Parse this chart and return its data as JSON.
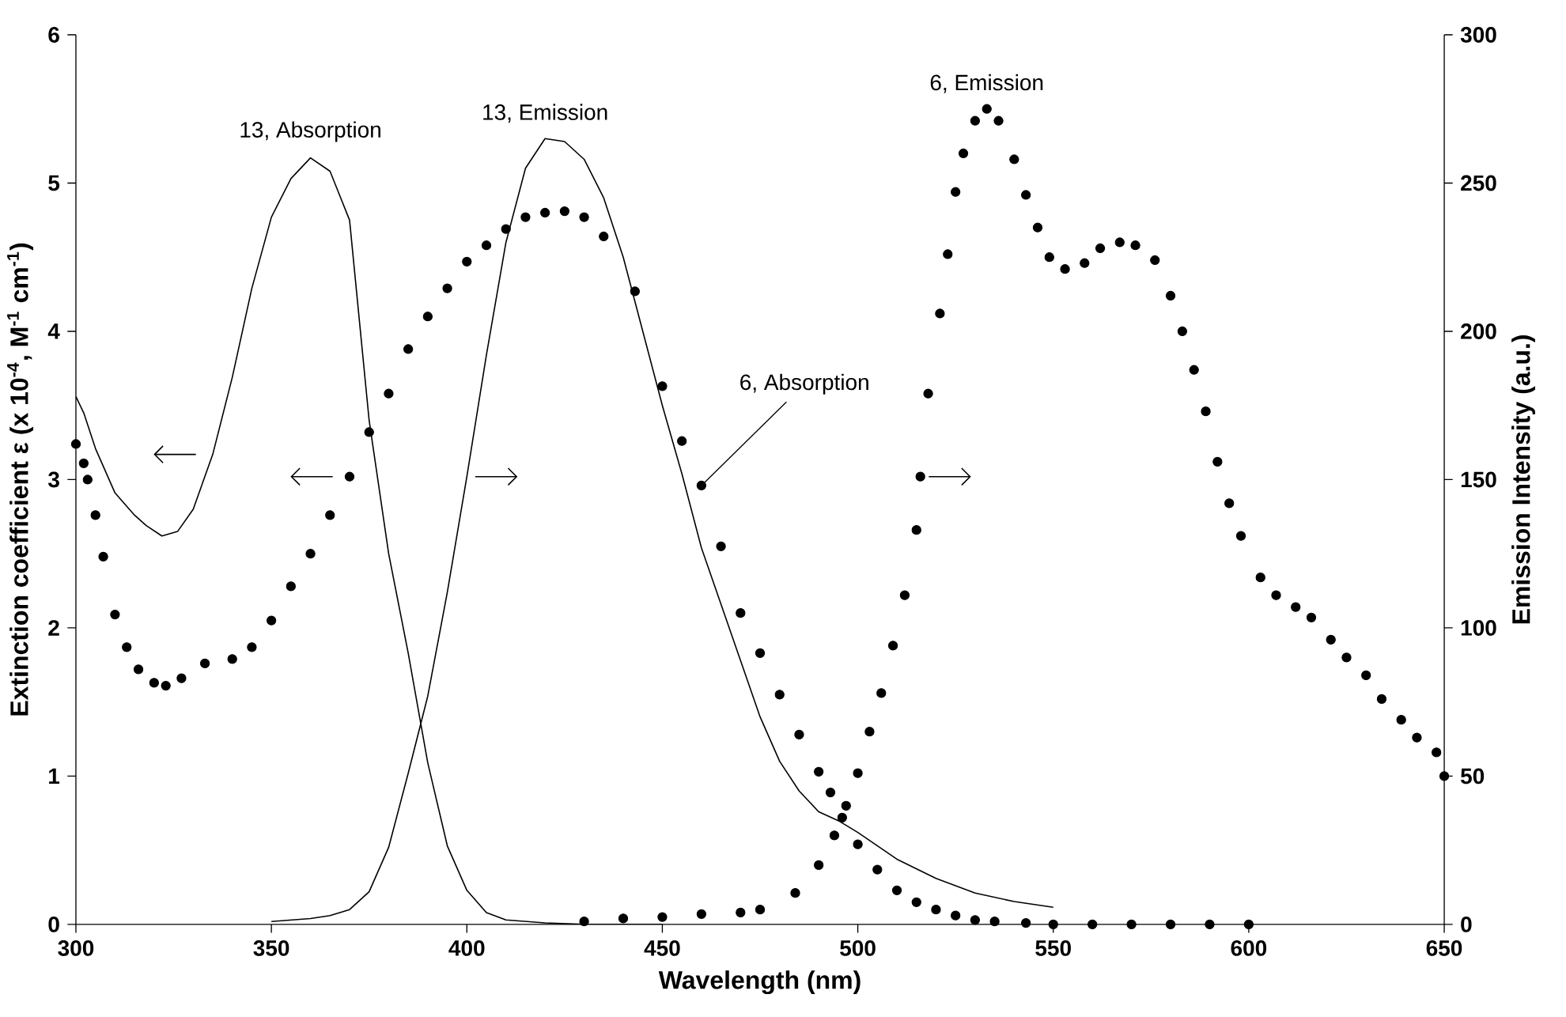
{
  "chart_data": {
    "type": "line",
    "xlabel": "Wavelength  (nm)",
    "ylabel": "Extinction coefficient ε (x 10$^{-4}$, M$^{-1}$ cm$^{-1}$)",
    "y2label": "Emission Intensity (a.u.)",
    "xlim": [
      300,
      650
    ],
    "xticks": [
      300,
      350,
      400,
      450,
      500,
      550,
      600,
      650
    ],
    "ylim": [
      0,
      6
    ],
    "yticks": [
      0,
      1,
      2,
      3,
      4,
      5,
      6
    ],
    "y2lim": [
      0,
      300
    ],
    "y2ticks": [
      0,
      50,
      100,
      150,
      200,
      250,
      300
    ],
    "series": [
      {
        "marker": "none",
        "color": "#000000",
        "axis": "y",
        "x": [
          300,
          302,
          305,
          310,
          315,
          318,
          322,
          326,
          330,
          335,
          340,
          345,
          350,
          355,
          360,
          365,
          370,
          375,
          380,
          385,
          390,
          395,
          400,
          405,
          410,
          420,
          430,
          450
        ],
        "values": [
          3.56,
          3.45,
          3.21,
          2.91,
          2.76,
          2.69,
          2.62,
          2.65,
          2.8,
          3.17,
          3.69,
          4.29,
          4.77,
          5.03,
          5.17,
          5.08,
          4.75,
          3.4,
          2.5,
          1.83,
          1.09,
          0.53,
          0.23,
          0.08,
          0.03,
          0.01,
          0,
          0
        ]
      },
      {
        "marker": "none",
        "color": "#000000",
        "axis": "y2",
        "x": [
          350,
          360,
          365,
          370,
          375,
          380,
          385,
          390,
          395,
          400,
          405,
          410,
          415,
          420,
          425,
          430,
          435,
          440,
          445,
          450,
          455,
          460,
          465,
          470,
          475,
          480,
          485,
          490,
          495,
          500,
          510,
          520,
          530,
          540,
          550
        ],
        "values": [
          1,
          2,
          3,
          5,
          11,
          26,
          51,
          77,
          112,
          151,
          192,
          230,
          255,
          265,
          264,
          258,
          245,
          225,
          200,
          175,
          152,
          127,
          108,
          89,
          70,
          55,
          45,
          38,
          35,
          31,
          22,
          15.5,
          10.6,
          7.7,
          5.8
        ]
      },
      {
        "type": "scatter",
        "marker": "circle",
        "color": "#000000",
        "axis": "y",
        "x": [
          300,
          302,
          303,
          305,
          307,
          310,
          313,
          316,
          320,
          323,
          327,
          333,
          340,
          345,
          350,
          355,
          360,
          365,
          370,
          375,
          380,
          385,
          390,
          395,
          400,
          405,
          410,
          415,
          420,
          425,
          430,
          435,
          443,
          450,
          455,
          460,
          465,
          470,
          475,
          480,
          485,
          490,
          493,
          496,
          500,
          505,
          510,
          515,
          520,
          525,
          530,
          535,
          543,
          550,
          560,
          570,
          580,
          590,
          600
        ],
        "values": [
          3.24,
          3.11,
          3.0,
          2.76,
          2.48,
          2.09,
          1.87,
          1.72,
          1.63,
          1.61,
          1.66,
          1.76,
          1.79,
          1.87,
          2.05,
          2.28,
          2.5,
          2.76,
          3.02,
          3.32,
          3.58,
          3.88,
          4.1,
          4.29,
          4.47,
          4.58,
          4.69,
          4.77,
          4.8,
          4.81,
          4.77,
          4.64,
          4.27,
          3.63,
          3.26,
          2.96,
          2.55,
          2.1,
          1.83,
          1.55,
          1.28,
          1.03,
          0.89,
          0.72,
          0.54,
          0.37,
          0.23,
          0.15,
          0.1,
          0.06,
          0.03,
          0.02,
          0.01,
          0,
          0,
          0,
          0,
          0,
          0
        ]
      },
      {
        "type": "scatter",
        "marker": "circle",
        "color": "#000000",
        "axis": "y2",
        "x": [
          430,
          440,
          450,
          460,
          470,
          475,
          484,
          490,
          494,
          497,
          500,
          503,
          506,
          509,
          512,
          515,
          516,
          518,
          521,
          523,
          525,
          527,
          530,
          533,
          536,
          540,
          543,
          546,
          549,
          553,
          558,
          562,
          567,
          571,
          576,
          580,
          583,
          586,
          589,
          592,
          595,
          598,
          603,
          607,
          612,
          616,
          621,
          625,
          630,
          634,
          639,
          643,
          648,
          650
        ],
        "values": [
          1,
          2,
          2.5,
          3.5,
          4,
          5,
          10.6,
          20,
          30,
          40,
          51,
          65,
          78,
          94,
          111,
          133,
          151,
          179,
          206,
          226,
          247,
          260,
          271,
          275,
          271,
          258,
          246,
          235,
          225,
          221,
          223,
          228,
          230,
          229,
          224,
          212,
          200,
          187,
          173,
          156,
          142,
          131,
          117,
          111,
          107,
          103.5,
          96,
          90,
          84,
          76,
          69,
          63,
          58,
          50
        ]
      }
    ],
    "annotations": [
      "13, Absorption",
      "13, Emission",
      {
        "text": "6, Absorption",
        "x": 460,
        "y": 2.96
      },
      "6, Emission"
    ]
  }
}
